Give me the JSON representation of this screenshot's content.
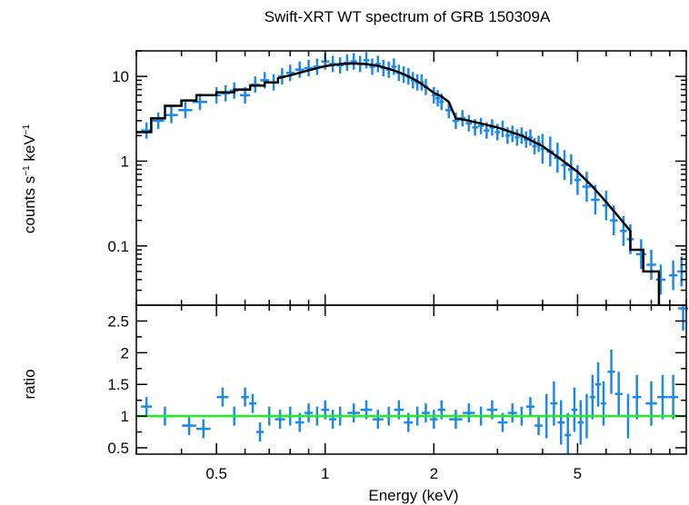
{
  "chart_data": {
    "type": "scatter",
    "title": "Swift-XRT WT spectrum of GRB 150309A",
    "xlabel": "Energy (keV)",
    "xscale": "log",
    "xlim": [
      0.3,
      10
    ],
    "x_ticks": [
      "0.5",
      "1",
      "2",
      "5"
    ],
    "x_tick_values": [
      0.5,
      1,
      2,
      5
    ],
    "colors": {
      "data": "#1e88e5",
      "model": "#000000",
      "unity": "#22ee22",
      "frame": "#000000"
    },
    "panels": [
      {
        "name": "spectrum",
        "ylabel_main": "counts s",
        "ylabel_sup1": "−1",
        "ylabel_mid": " keV",
        "ylabel_sup2": "−1",
        "yscale": "log",
        "ylim": [
          0.02,
          20
        ],
        "y_ticks": [
          "10",
          "1",
          "0.1"
        ],
        "y_tick_values": [
          10,
          1,
          0.1
        ],
        "data": [
          {
            "x": 0.32,
            "y": 2.3
          },
          {
            "x": 0.345,
            "y": 3.0
          },
          {
            "x": 0.375,
            "y": 3.5
          },
          {
            "x": 0.41,
            "y": 4.0
          },
          {
            "x": 0.45,
            "y": 5.0
          },
          {
            "x": 0.5,
            "y": 6.0
          },
          {
            "x": 0.53,
            "y": 6.3
          },
          {
            "x": 0.56,
            "y": 6.8
          },
          {
            "x": 0.6,
            "y": 6.0
          },
          {
            "x": 0.64,
            "y": 8.0
          },
          {
            "x": 0.68,
            "y": 9.0
          },
          {
            "x": 0.72,
            "y": 8.5
          },
          {
            "x": 0.76,
            "y": 10.0
          },
          {
            "x": 0.8,
            "y": 11.0
          },
          {
            "x": 0.85,
            "y": 12.0
          },
          {
            "x": 0.9,
            "y": 12.5
          },
          {
            "x": 0.95,
            "y": 13.0
          },
          {
            "x": 1.0,
            "y": 15.0
          },
          {
            "x": 1.05,
            "y": 14.0
          },
          {
            "x": 1.1,
            "y": 13.5
          },
          {
            "x": 1.15,
            "y": 14.5
          },
          {
            "x": 1.2,
            "y": 15.0
          },
          {
            "x": 1.25,
            "y": 14.0
          },
          {
            "x": 1.3,
            "y": 15.5
          },
          {
            "x": 1.35,
            "y": 13.0
          },
          {
            "x": 1.4,
            "y": 14.0
          },
          {
            "x": 1.45,
            "y": 12.5
          },
          {
            "x": 1.5,
            "y": 12.0
          },
          {
            "x": 1.55,
            "y": 13.0
          },
          {
            "x": 1.6,
            "y": 11.0
          },
          {
            "x": 1.65,
            "y": 10.5
          },
          {
            "x": 1.7,
            "y": 10.0
          },
          {
            "x": 1.75,
            "y": 9.0
          },
          {
            "x": 1.8,
            "y": 8.5
          },
          {
            "x": 1.85,
            "y": 8.5
          },
          {
            "x": 1.9,
            "y": 7.5
          },
          {
            "x": 2.0,
            "y": 6.0
          },
          {
            "x": 2.05,
            "y": 5.5
          },
          {
            "x": 2.1,
            "y": 5.0
          },
          {
            "x": 2.2,
            "y": 4.0
          },
          {
            "x": 2.3,
            "y": 3.0
          },
          {
            "x": 2.4,
            "y": 3.2
          },
          {
            "x": 2.5,
            "y": 2.8
          },
          {
            "x": 2.6,
            "y": 2.5
          },
          {
            "x": 2.7,
            "y": 2.6
          },
          {
            "x": 2.8,
            "y": 2.3
          },
          {
            "x": 2.9,
            "y": 2.5
          },
          {
            "x": 3.0,
            "y": 2.2
          },
          {
            "x": 3.1,
            "y": 2.4
          },
          {
            "x": 3.2,
            "y": 2.0
          },
          {
            "x": 3.3,
            "y": 2.1
          },
          {
            "x": 3.4,
            "y": 1.9
          },
          {
            "x": 3.5,
            "y": 2.0
          },
          {
            "x": 3.6,
            "y": 1.8
          },
          {
            "x": 3.7,
            "y": 1.9
          },
          {
            "x": 3.8,
            "y": 1.5
          },
          {
            "x": 3.9,
            "y": 1.6
          },
          {
            "x": 4.0,
            "y": 1.4
          },
          {
            "x": 4.2,
            "y": 1.3
          },
          {
            "x": 4.4,
            "y": 1.1
          },
          {
            "x": 4.6,
            "y": 0.9
          },
          {
            "x": 4.8,
            "y": 0.8
          },
          {
            "x": 5.0,
            "y": 0.6
          },
          {
            "x": 5.3,
            "y": 0.5
          },
          {
            "x": 5.6,
            "y": 0.35
          },
          {
            "x": 6.0,
            "y": 0.3
          },
          {
            "x": 6.3,
            "y": 0.2
          },
          {
            "x": 6.7,
            "y": 0.15
          },
          {
            "x": 7.0,
            "y": 0.12
          },
          {
            "x": 7.5,
            "y": 0.08
          },
          {
            "x": 8.0,
            "y": 0.06
          },
          {
            "x": 8.5,
            "y": 0.04
          },
          {
            "x": 9.2,
            "y": 0.045
          },
          {
            "x": 9.7,
            "y": 0.05
          }
        ],
        "model": [
          {
            "x": 0.3,
            "y": 2.2
          },
          {
            "x": 0.33,
            "y": 2.2
          },
          {
            "x": 0.33,
            "y": 3.2
          },
          {
            "x": 0.36,
            "y": 3.2
          },
          {
            "x": 0.36,
            "y": 4.5
          },
          {
            "x": 0.4,
            "y": 4.5
          },
          {
            "x": 0.4,
            "y": 5.2
          },
          {
            "x": 0.44,
            "y": 5.2
          },
          {
            "x": 0.44,
            "y": 6.0
          },
          {
            "x": 0.5,
            "y": 6.0
          },
          {
            "x": 0.5,
            "y": 6.5
          },
          {
            "x": 0.56,
            "y": 6.5
          },
          {
            "x": 0.56,
            "y": 7.0
          },
          {
            "x": 0.62,
            "y": 7.0
          },
          {
            "x": 0.62,
            "y": 7.8
          },
          {
            "x": 0.68,
            "y": 7.8
          },
          {
            "x": 0.68,
            "y": 8.5
          },
          {
            "x": 0.74,
            "y": 8.5
          },
          {
            "x": 0.74,
            "y": 9.5
          },
          {
            "x": 0.8,
            "y": 10.3
          },
          {
            "x": 0.9,
            "y": 11.8
          },
          {
            "x": 1.0,
            "y": 13.2
          },
          {
            "x": 1.1,
            "y": 14.0
          },
          {
            "x": 1.2,
            "y": 14.2
          },
          {
            "x": 1.3,
            "y": 14.0
          },
          {
            "x": 1.4,
            "y": 13.3
          },
          {
            "x": 1.5,
            "y": 12.3
          },
          {
            "x": 1.6,
            "y": 11.2
          },
          {
            "x": 1.7,
            "y": 10.0
          },
          {
            "x": 1.8,
            "y": 8.8
          },
          {
            "x": 1.9,
            "y": 7.5
          },
          {
            "x": 2.0,
            "y": 6.4
          },
          {
            "x": 2.1,
            "y": 5.8
          },
          {
            "x": 2.2,
            "y": 5.0
          },
          {
            "x": 2.3,
            "y": 3.2
          },
          {
            "x": 2.5,
            "y": 3.0
          },
          {
            "x": 3.0,
            "y": 2.5
          },
          {
            "x": 3.5,
            "y": 2.0
          },
          {
            "x": 4.0,
            "y": 1.5
          },
          {
            "x": 4.5,
            "y": 1.05
          },
          {
            "x": 5.0,
            "y": 0.75
          },
          {
            "x": 5.5,
            "y": 0.5
          },
          {
            "x": 6.0,
            "y": 0.33
          },
          {
            "x": 6.5,
            "y": 0.22
          },
          {
            "x": 7.0,
            "y": 0.15
          },
          {
            "x": 7.0,
            "y": 0.09
          },
          {
            "x": 7.6,
            "y": 0.09
          },
          {
            "x": 7.6,
            "y": 0.05
          },
          {
            "x": 8.4,
            "y": 0.05
          },
          {
            "x": 8.4,
            "y": 0.02
          }
        ]
      },
      {
        "name": "ratio",
        "ylabel": "ratio",
        "yscale": "linear",
        "ylim": [
          0.4,
          2.75
        ],
        "y_ticks": [
          "0.5",
          "1",
          "1.5",
          "2",
          "2.5"
        ],
        "y_tick_values": [
          0.5,
          1,
          1.5,
          2,
          2.5
        ],
        "reference_line": 1,
        "data": [
          {
            "x": 0.32,
            "y": 1.15
          },
          {
            "x": 0.36,
            "y": 1.0
          },
          {
            "x": 0.42,
            "y": 0.85
          },
          {
            "x": 0.46,
            "y": 0.8
          },
          {
            "x": 0.52,
            "y": 1.3
          },
          {
            "x": 0.56,
            "y": 1.0
          },
          {
            "x": 0.6,
            "y": 1.3
          },
          {
            "x": 0.63,
            "y": 1.2
          },
          {
            "x": 0.66,
            "y": 0.75
          },
          {
            "x": 0.7,
            "y": 1.0
          },
          {
            "x": 0.75,
            "y": 0.95
          },
          {
            "x": 0.8,
            "y": 1.0
          },
          {
            "x": 0.85,
            "y": 0.9
          },
          {
            "x": 0.9,
            "y": 1.05
          },
          {
            "x": 0.95,
            "y": 1.0
          },
          {
            "x": 1.0,
            "y": 1.1
          },
          {
            "x": 1.05,
            "y": 0.95
          },
          {
            "x": 1.1,
            "y": 1.0
          },
          {
            "x": 1.2,
            "y": 1.05
          },
          {
            "x": 1.3,
            "y": 1.1
          },
          {
            "x": 1.4,
            "y": 0.95
          },
          {
            "x": 1.5,
            "y": 1.0
          },
          {
            "x": 1.6,
            "y": 1.1
          },
          {
            "x": 1.7,
            "y": 0.9
          },
          {
            "x": 1.8,
            "y": 1.0
          },
          {
            "x": 1.9,
            "y": 1.05
          },
          {
            "x": 2.0,
            "y": 0.95
          },
          {
            "x": 2.1,
            "y": 1.1
          },
          {
            "x": 2.3,
            "y": 0.95
          },
          {
            "x": 2.5,
            "y": 1.05
          },
          {
            "x": 2.7,
            "y": 1.0
          },
          {
            "x": 2.9,
            "y": 1.1
          },
          {
            "x": 3.1,
            "y": 0.9
          },
          {
            "x": 3.3,
            "y": 1.05
          },
          {
            "x": 3.5,
            "y": 1.0
          },
          {
            "x": 3.7,
            "y": 1.15
          },
          {
            "x": 3.9,
            "y": 0.85
          },
          {
            "x": 4.1,
            "y": 1.0
          },
          {
            "x": 4.3,
            "y": 1.2
          },
          {
            "x": 4.5,
            "y": 0.9
          },
          {
            "x": 4.7,
            "y": 0.7
          },
          {
            "x": 4.9,
            "y": 1.1
          },
          {
            "x": 5.1,
            "y": 0.9
          },
          {
            "x": 5.3,
            "y": 1.0
          },
          {
            "x": 5.5,
            "y": 1.3
          },
          {
            "x": 5.7,
            "y": 1.5
          },
          {
            "x": 5.9,
            "y": 1.2
          },
          {
            "x": 6.2,
            "y": 1.7
          },
          {
            "x": 6.5,
            "y": 1.35
          },
          {
            "x": 6.9,
            "y": 1.0
          },
          {
            "x": 7.3,
            "y": 1.3
          },
          {
            "x": 8.0,
            "y": 1.2
          },
          {
            "x": 8.6,
            "y": 1.3
          },
          {
            "x": 9.2,
            "y": 1.3
          },
          {
            "x": 9.8,
            "y": 2.7
          }
        ]
      }
    ]
  }
}
